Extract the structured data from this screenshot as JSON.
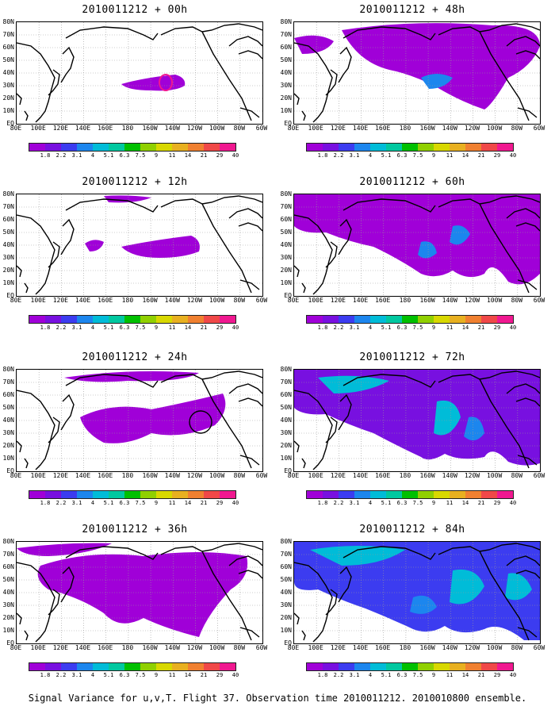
{
  "panels": [
    {
      "title": "2010011212 + 00h",
      "col": 0,
      "row": 0,
      "intensity": 0
    },
    {
      "title": "2010011212 + 48h",
      "col": 1,
      "row": 0,
      "intensity": 4
    },
    {
      "title": "2010011212 + 12h",
      "col": 0,
      "row": 1,
      "intensity": 1
    },
    {
      "title": "2010011212 + 60h",
      "col": 1,
      "row": 1,
      "intensity": 5
    },
    {
      "title": "2010011212 + 24h",
      "col": 0,
      "row": 2,
      "intensity": 2
    },
    {
      "title": "2010011212 + 72h",
      "col": 1,
      "row": 2,
      "intensity": 6
    },
    {
      "title": "2010011212 + 36h",
      "col": 0,
      "row": 3,
      "intensity": 3
    },
    {
      "title": "2010011212 + 84h",
      "col": 1,
      "row": 3,
      "intensity": 7
    }
  ],
  "lat_labels": [
    "80N",
    "70N",
    "60N",
    "50N",
    "40N",
    "30N",
    "20N",
    "10N",
    "EQ"
  ],
  "lon_labels": [
    "80E",
    "100E",
    "120E",
    "140E",
    "160E",
    "180",
    "160W",
    "140W",
    "120W",
    "100W",
    "80W",
    "60W"
  ],
  "colorbar": {
    "labels": [
      "1.8",
      "2.2",
      "3.1",
      "4",
      "5.1",
      "6.3",
      "7.5",
      "9",
      "11",
      "14",
      "21",
      "29",
      "40"
    ],
    "colors": [
      "#a000d8",
      "#7810e0",
      "#3c3cf0",
      "#1c86ee",
      "#00bcd8",
      "#00c8a0",
      "#00c000",
      "#90d000",
      "#d8d800",
      "#e8b020",
      "#f08030",
      "#f04848",
      "#f01890"
    ]
  },
  "caption": "Signal Variance for u,v,T. Flight 37. Observation time 2010011212. 2010010800 ensemble."
}
